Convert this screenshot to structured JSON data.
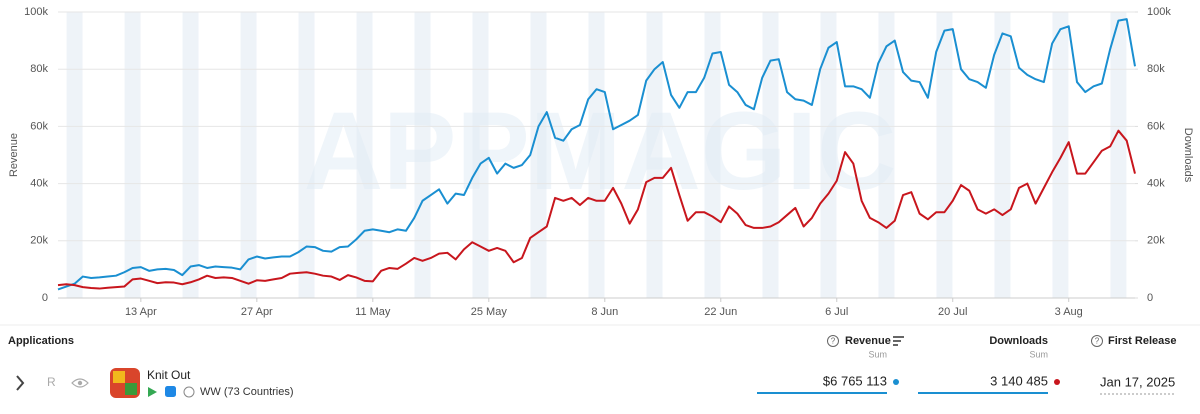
{
  "chart_data": {
    "type": "line",
    "watermark": "APPMAGIC",
    "categories": [
      null,
      null,
      null,
      null,
      null,
      null,
      null,
      null,
      null,
      null,
      "13 Apr",
      null,
      null,
      null,
      null,
      null,
      null,
      null,
      null,
      null,
      null,
      null,
      null,
      null,
      "27 Apr",
      null,
      null,
      null,
      null,
      null,
      null,
      null,
      null,
      null,
      null,
      null,
      null,
      null,
      "11 May",
      null,
      null,
      null,
      null,
      null,
      null,
      null,
      null,
      null,
      null,
      null,
      null,
      null,
      "25 May",
      null,
      null,
      null,
      null,
      null,
      null,
      null,
      null,
      null,
      null,
      null,
      null,
      null,
      "8 Jun",
      null,
      null,
      null,
      null,
      null,
      null,
      null,
      null,
      null,
      null,
      null,
      null,
      null,
      "22 Jun",
      null,
      null,
      null,
      null,
      null,
      null,
      null,
      null,
      null,
      null,
      null,
      null,
      null,
      "6 Jul",
      null,
      null,
      null,
      null,
      null,
      null,
      null,
      null,
      null,
      null,
      null,
      null,
      null,
      "20 Jul",
      null,
      null,
      null,
      null,
      null,
      null,
      null,
      null,
      null,
      null,
      null,
      null,
      null,
      "3 Aug",
      null,
      null,
      null,
      null,
      null,
      null,
      null,
      null
    ],
    "series": [
      {
        "name": "Revenue",
        "color": "#1a8fd1",
        "axis": "y",
        "values": [
          3000,
          4000,
          5000,
          7500,
          7000,
          7200,
          7500,
          7800,
          9000,
          10500,
          10800,
          9500,
          10000,
          10200,
          9800,
          8000,
          11000,
          11500,
          10500,
          11000,
          10800,
          10600,
          10000,
          13500,
          14500,
          13800,
          14200,
          14500,
          14500,
          16000,
          18000,
          17800,
          16500,
          16200,
          17800,
          18000,
          20500,
          23500,
          24000,
          23500,
          23000,
          24000,
          23500,
          28000,
          34000,
          36000,
          38000,
          33000,
          36500,
          36000,
          42000,
          47000,
          49000,
          43500,
          47000,
          45500,
          46500,
          50000,
          60000,
          65000,
          56000,
          55000,
          59000,
          60500,
          69500,
          73000,
          72000,
          59000,
          60500,
          62000,
          64000,
          76000,
          80000,
          82500,
          71000,
          66500,
          72000,
          72000,
          77000,
          85500,
          86000,
          74500,
          72000,
          67500,
          66000,
          77000,
          83000,
          83500,
          72000,
          69500,
          69000,
          67500,
          80000,
          87500,
          89500,
          74000,
          74000,
          73000,
          70000,
          82000,
          88000,
          90000,
          79000,
          76000,
          75500,
          70000,
          86000,
          93500,
          94000,
          80000,
          76500,
          75500,
          73500,
          85000,
          92500,
          91500,
          80500,
          78000,
          76500,
          75500,
          89000,
          94000,
          95000,
          75500,
          72000,
          74000,
          75000,
          87000,
          97000,
          97500,
          81000
        ]
      },
      {
        "name": "Downloads",
        "color": "#c8161d",
        "axis": "y2",
        "values": [
          4500,
          4800,
          4500,
          3800,
          3500,
          3300,
          3600,
          3800,
          4000,
          6500,
          6800,
          6000,
          5200,
          5500,
          5400,
          4800,
          5500,
          6500,
          7800,
          7000,
          7200,
          7000,
          6000,
          5000,
          6200,
          6000,
          6500,
          7000,
          8500,
          8800,
          9000,
          8500,
          7800,
          7500,
          6300,
          8000,
          7200,
          6000,
          5800,
          9500,
          10500,
          10200,
          12000,
          14000,
          13000,
          14000,
          15500,
          15800,
          13500,
          17000,
          19500,
          18000,
          16500,
          17500,
          16500,
          12500,
          14000,
          21000,
          23000,
          25000,
          35000,
          34000,
          35000,
          32500,
          35000,
          34000,
          34000,
          38500,
          33000,
          26000,
          31000,
          40500,
          42000,
          42000,
          45500,
          36000,
          27000,
          30000,
          30000,
          28500,
          26500,
          32000,
          29500,
          25500,
          24500,
          24500,
          25000,
          26500,
          29000,
          31500,
          25000,
          28000,
          33000,
          36500,
          41000,
          51000,
          47000,
          34000,
          28000,
          26500,
          24500,
          27000,
          36000,
          37000,
          29500,
          27500,
          30000,
          30000,
          34000,
          39500,
          37500,
          31000,
          29500,
          31000,
          29000,
          31000,
          38500,
          40000,
          33000,
          38500,
          44000,
          49000,
          54500,
          43500,
          43500,
          47500,
          51500,
          53000,
          58500,
          55000,
          43500
        ]
      }
    ],
    "ylim": [
      0,
      100000
    ],
    "yticks": [
      0,
      {
        "value": 20000,
        "label": "20k"
      },
      {
        "value": 40000,
        "label": "40k"
      },
      {
        "value": 60000,
        "label": "60k"
      },
      {
        "value": 80000,
        "label": "80k"
      },
      {
        "value": 100000,
        "label": "100k"
      }
    ],
    "y2lim": [
      0,
      100000
    ],
    "y2ticks": [
      0,
      {
        "value": 20000,
        "label": "20k"
      },
      {
        "value": 40000,
        "label": "40k"
      },
      {
        "value": 60000,
        "label": "60k"
      },
      {
        "value": 80000,
        "label": "80k"
      },
      {
        "value": 100000,
        "label": "100k"
      }
    ],
    "grid": true
  },
  "table": {
    "columns": {
      "applications": "Applications",
      "revenue": "Revenue",
      "revenue_agg": "Sum",
      "downloads": "Downloads",
      "downloads_agg": "Sum",
      "first_release": "First Release"
    },
    "row": {
      "badge": "R",
      "app": "Knit Out",
      "region": "WW (73 Countries)",
      "revenue": "$6 765 113",
      "downloads": "3 140 485",
      "first_release": "Jan 17, 2025"
    }
  }
}
